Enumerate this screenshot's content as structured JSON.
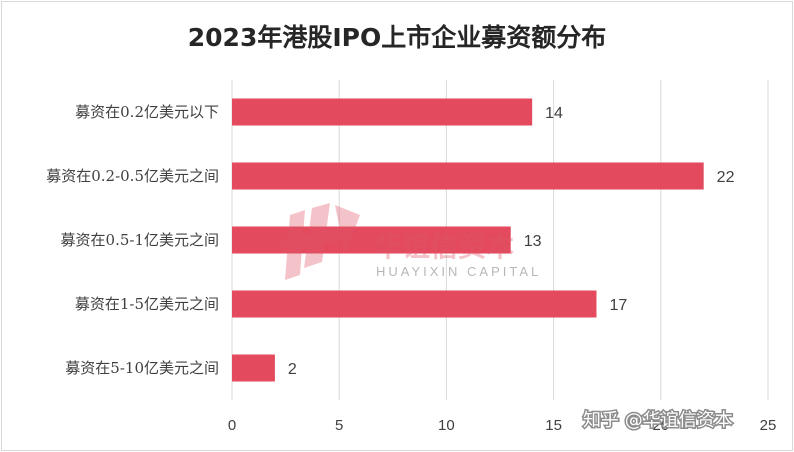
{
  "chart_data": {
    "type": "bar",
    "orientation": "horizontal",
    "title": "2023年港股IPO上市企业募资额分布",
    "categories": [
      "募资在0.2亿美元以下",
      "募资在0.2-0.5亿美元之间",
      "募资在0.5-1亿美元之间",
      "募资在1-5亿美元之间",
      "募资在5-10亿美元之间"
    ],
    "values": [
      14,
      22,
      13,
      17,
      2
    ],
    "xlim": [
      0,
      25
    ],
    "xticks": [
      0,
      5,
      10,
      15,
      20,
      25
    ],
    "grid": true,
    "bar_color": "#e34a5e",
    "data_labels": true
  },
  "watermark": {
    "logo_text": "华谊信资本",
    "logo_subtext": "HUAYIXIN CAPITAL",
    "footer_text": "知乎 @华谊信资本"
  }
}
